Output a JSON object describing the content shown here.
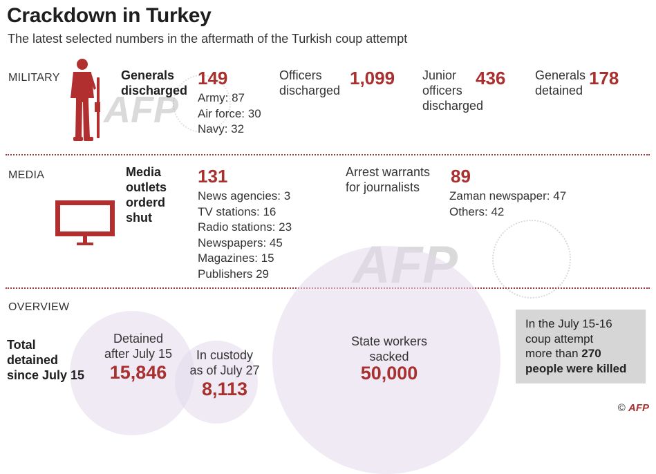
{
  "header": {
    "title": "Crackdown in Turkey",
    "subtitle": "The latest  selected numbers in the aftermath of the Turkish coup attempt"
  },
  "military": {
    "section_label": "MILITARY",
    "icon": "soldier-icon",
    "generals_discharged": {
      "label_line1": "Generals",
      "label_line2": "discharged",
      "value": "149",
      "breakdown": [
        "Army: 87",
        "Air force: 30",
        "Navy: 32"
      ]
    },
    "officers_discharged": {
      "label_line1": "Officers",
      "label_line2": "discharged",
      "value": "1,099"
    },
    "junior_officers_discharged": {
      "label_line1": "Junior",
      "label_line2": "officers",
      "label_line3": "discharged",
      "value": "436"
    },
    "generals_detained": {
      "label_line1": "Generals",
      "label_line2": "detained",
      "value": "178"
    }
  },
  "media": {
    "section_label": "MEDIA",
    "icon": "tv-icon",
    "outlets_shut": {
      "label_line1": "Media",
      "label_line2": "outlets",
      "label_line3": "orderd",
      "label_line4": "shut",
      "value": "131",
      "breakdown": [
        "News agencies: 3",
        "TV stations: 16",
        "Radio stations: 23",
        "Newspapers: 45",
        "Magazines: 15",
        "Publishers 29"
      ]
    },
    "arrest_warrants": {
      "label_line1": "Arrest warrants",
      "label_line2": "for journalists",
      "value": "89",
      "breakdown": [
        "Zaman newspaper: 47",
        "Others: 42"
      ]
    }
  },
  "overview": {
    "section_label": "OVERVIEW",
    "total_detained_label": [
      "Total",
      "detained",
      "since July 15"
    ],
    "detained_after": {
      "label_line1": "Detained",
      "label_line2": "after July 15",
      "value": "15,846"
    },
    "in_custody": {
      "label_line1": "In custody",
      "label_line2": "as of July 27",
      "value": "8,113"
    },
    "state_workers": {
      "label_line1": "State workers",
      "label_line2": "sacked",
      "value": "50,000"
    },
    "killed_box": {
      "line1": "In the July 15-16",
      "line2": "coup attempt",
      "line3_prefix": "more than",
      "line3_bold": "270",
      "line4": "people were killed"
    }
  },
  "watermark": {
    "text": "AFP"
  },
  "credit": {
    "symbol": "©",
    "brand": "AFP"
  },
  "colors": {
    "accent": "#a8302f",
    "circle": "#e1d8eb",
    "box": "#d6d6d6",
    "divider": "#b0323a"
  }
}
